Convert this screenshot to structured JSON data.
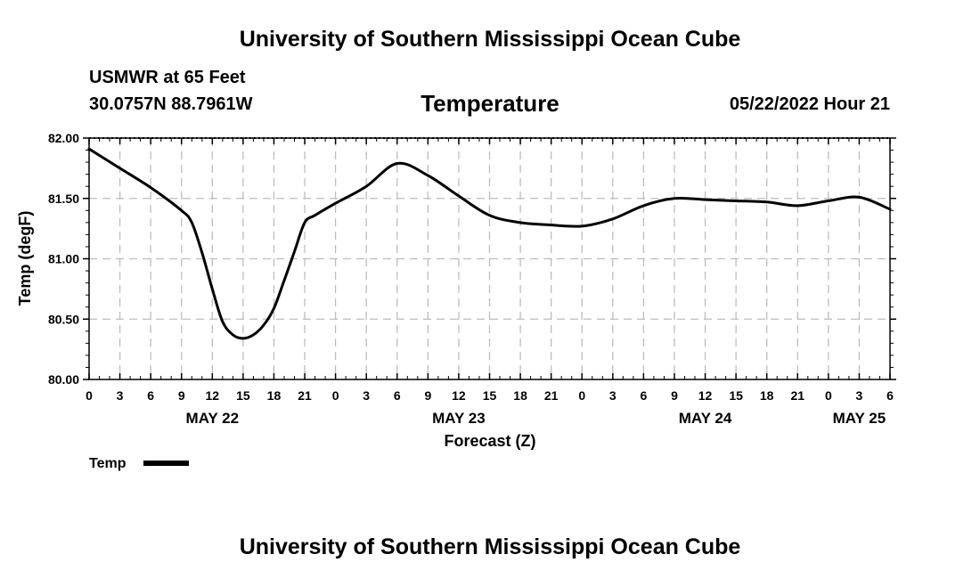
{
  "header": {
    "title": "University of Southern Mississippi Ocean Cube",
    "station": "USMWR at 65 Feet",
    "coordinates": "30.0757N  88.7961W",
    "variable": "Temperature",
    "timestamp": "05/22/2022 Hour 21"
  },
  "footer": {
    "title": "University of Southern Mississippi Ocean Cube"
  },
  "chart_data": {
    "type": "line",
    "xlabel": "Forecast (Z)",
    "ylabel": "Temp (degF)",
    "ylim": [
      80.0,
      82.0
    ],
    "xlim_hours": [
      0,
      78
    ],
    "y_ticks": [
      "80.00",
      "80.50",
      "81.00",
      "81.50",
      "82.00"
    ],
    "x_tick_labels": [
      "0",
      "3",
      "6",
      "9",
      "12",
      "15",
      "18",
      "21",
      "0",
      "3",
      "6",
      "9",
      "12",
      "15",
      "18",
      "21",
      "0",
      "3",
      "6",
      "9",
      "12",
      "15",
      "18",
      "21",
      "0",
      "3",
      "6"
    ],
    "day_labels": [
      {
        "label": "MAY 22",
        "hour": 12
      },
      {
        "label": "MAY 23",
        "hour": 36
      },
      {
        "label": "MAY 24",
        "hour": 60
      },
      {
        "label": "MAY 25",
        "hour": 75
      }
    ],
    "grid": true,
    "legend_position": "bottom-left",
    "line_color": "#000000",
    "series": [
      {
        "name": "Temp",
        "x_hours": [
          0,
          3,
          6,
          9,
          10,
          11,
          12,
          13,
          14,
          15,
          16,
          17,
          18,
          19,
          20,
          21,
          22,
          24,
          27,
          30,
          33,
          36,
          39,
          42,
          45,
          48,
          51,
          54,
          57,
          60,
          63,
          66,
          69,
          72,
          75,
          78
        ],
        "values": [
          81.91,
          81.75,
          81.59,
          81.4,
          81.3,
          81.05,
          80.75,
          80.48,
          80.37,
          80.34,
          80.37,
          80.45,
          80.59,
          80.82,
          81.06,
          81.3,
          81.36,
          81.46,
          81.6,
          81.79,
          81.69,
          81.52,
          81.36,
          81.3,
          81.28,
          81.27,
          81.33,
          81.44,
          81.5,
          81.49,
          81.48,
          81.47,
          81.44,
          81.48,
          81.51,
          81.41
        ]
      }
    ]
  }
}
